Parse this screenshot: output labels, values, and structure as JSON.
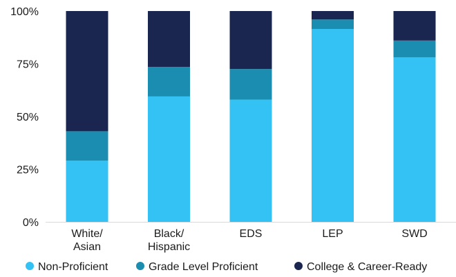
{
  "chart_data": {
    "type": "bar",
    "stacked": true,
    "categories": [
      [
        "White/",
        "Asian"
      ],
      [
        "Black/",
        "Hispanic"
      ],
      [
        "EDS"
      ],
      [
        "LEP"
      ],
      [
        "SWD"
      ]
    ],
    "series": [
      {
        "name": "Non-Proficient",
        "color": "#33c2f3",
        "values": [
          29,
          59.5,
          58,
          91.5,
          78
        ]
      },
      {
        "name": "Grade Level Proficient",
        "color": "#1b8db0",
        "values": [
          14,
          14,
          14.5,
          4.5,
          8
        ]
      },
      {
        "name": "College & Career-Ready",
        "color": "#1a2650",
        "values": [
          57,
          26.5,
          27.5,
          4,
          14
        ]
      }
    ],
    "ylim": [
      0,
      100
    ],
    "yticks": [
      0,
      25,
      50,
      75,
      100
    ],
    "ytick_labels": [
      "0%",
      "25%",
      "50%",
      "75%",
      "100%"
    ],
    "grid": false,
    "legend_position": "bottom"
  }
}
